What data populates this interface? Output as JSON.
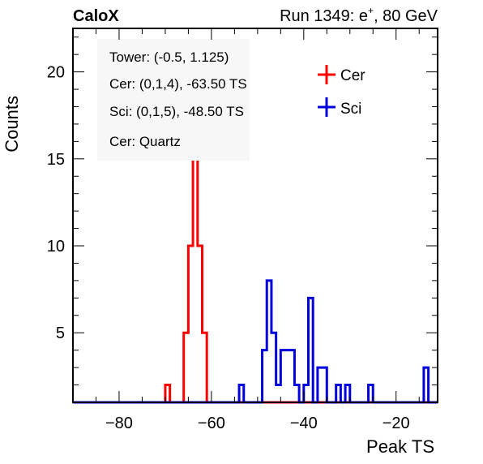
{
  "header": {
    "left_title": "CaloX",
    "right_title_prefix": "Run 1349: e",
    "right_title_sup": "+",
    "right_title_suffix": ", 80 GeV"
  },
  "info_box": {
    "lines": [
      "Tower: (-0.5, 1.125)",
      "Cer: (0,1,4), -63.50 TS",
      "Sci: (0,1,5), -48.50 TS",
      "Cer: Quartz"
    ]
  },
  "colors": {
    "Cer": "#ff0000",
    "Sci": "#0000dd"
  },
  "chart_data": {
    "type": "histogram",
    "xlabel": "Peak TS",
    "ylabel": "Counts",
    "xlim": [
      -90,
      -11
    ],
    "ylim": [
      1,
      22.5
    ],
    "x_ticks": [
      -80,
      -60,
      -40,
      -20
    ],
    "y_ticks": [
      5,
      10,
      15,
      20
    ],
    "bin_width": 1,
    "legend": {
      "position": "top-right",
      "entries": [
        "Cer",
        "Sci"
      ]
    },
    "series": [
      {
        "name": "Cer",
        "color": "#ff0000",
        "bins": [
          {
            "x": -70,
            "count": 2
          },
          {
            "x": -66,
            "count": 5
          },
          {
            "x": -65,
            "count": 10
          },
          {
            "x": -64,
            "count": 15
          },
          {
            "x": -63,
            "count": 10
          },
          {
            "x": -62,
            "count": 5
          },
          {
            "x": -48,
            "count": 1
          },
          {
            "x": -47,
            "count": 1
          },
          {
            "x": -46,
            "count": 1
          },
          {
            "x": -45,
            "count": 1
          },
          {
            "x": -44,
            "count": 1
          },
          {
            "x": -43,
            "count": 1
          }
        ]
      },
      {
        "name": "Sci",
        "color": "#0000dd",
        "bins": [
          {
            "x": -54,
            "count": 2
          },
          {
            "x": -49,
            "count": 4
          },
          {
            "x": -48,
            "count": 8
          },
          {
            "x": -47,
            "count": 5
          },
          {
            "x": -46,
            "count": 2
          },
          {
            "x": -45,
            "count": 4
          },
          {
            "x": -44,
            "count": 4
          },
          {
            "x": -43,
            "count": 4
          },
          {
            "x": -42,
            "count": 2
          },
          {
            "x": -40,
            "count": 2
          },
          {
            "x": -39,
            "count": 7
          },
          {
            "x": -37,
            "count": 3
          },
          {
            "x": -36,
            "count": 3
          },
          {
            "x": -33,
            "count": 2
          },
          {
            "x": -31,
            "count": 2
          },
          {
            "x": -26,
            "count": 2
          },
          {
            "x": -14,
            "count": 3
          }
        ]
      }
    ]
  }
}
